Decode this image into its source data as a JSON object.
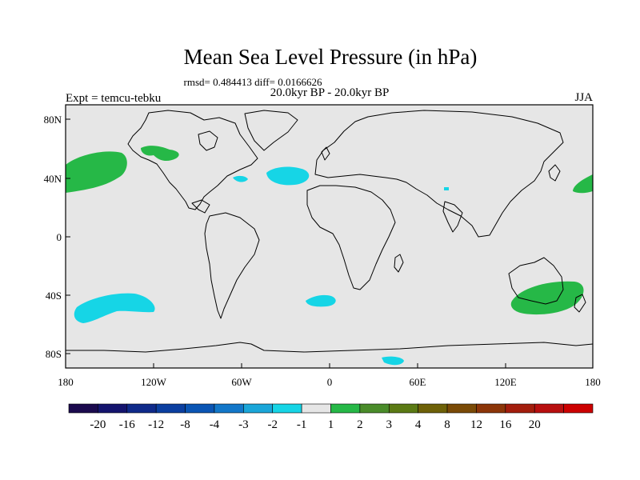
{
  "title": "Mean Sea Level Pressure (in hPa)",
  "stats": "rmsd= 0.484413 diff= 0.0166626",
  "experiment": "Expt = temcu-tebku",
  "period": "20.0kyr BP - 20.0kyr BP",
  "season": "JJA",
  "lat_ticks": [
    "80N",
    "40N",
    "0",
    "40S",
    "80S"
  ],
  "lon_ticks": [
    "180",
    "120W",
    "60W",
    "0",
    "60E",
    "120E",
    "180"
  ],
  "colorbar": {
    "colors": [
      "#1b0a4e",
      "#14146e",
      "#0f2a8a",
      "#0b3fa0",
      "#0a55b4",
      "#1277c9",
      "#1aa6d9",
      "#16d5e6",
      "#e6e6e6",
      "#26b847",
      "#4a8c2a",
      "#5b7a14",
      "#6e6108",
      "#7a4a06",
      "#8c3508",
      "#a31d0c",
      "#b80f0f",
      "#cc0000"
    ],
    "labels": [
      "-20",
      "-16",
      "-12",
      "-8",
      "-4",
      "-3",
      "-2",
      "-1",
      "1",
      "2",
      "3",
      "4",
      "8",
      "12",
      "16",
      "20"
    ]
  },
  "map": {
    "ocean_color": "#e6e6e6",
    "negative_color": "#16d5e6",
    "positive_color": "#26b847",
    "coast_color": "#000000"
  }
}
